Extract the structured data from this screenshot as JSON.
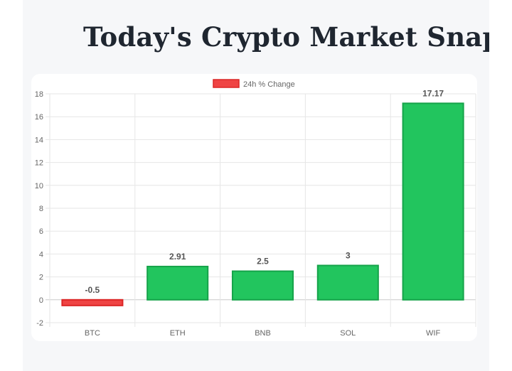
{
  "page": {
    "title": "Today's Crypto Market Snapshot"
  },
  "colors": {
    "positive": "#22c55e",
    "positive_border": "#16a34a",
    "negative": "#ef4444",
    "negative_border": "#dc2626"
  },
  "chart_data": {
    "type": "bar",
    "title": "",
    "xlabel": "",
    "ylabel": "",
    "categories": [
      "BTC",
      "ETH",
      "BNB",
      "SOL",
      "WIF"
    ],
    "series": [
      {
        "name": "24h % Change",
        "values": [
          -0.5,
          2.91,
          2.5,
          3,
          17.17
        ]
      }
    ],
    "ylim": [
      -2,
      18
    ],
    "yticks": [
      -2,
      0,
      2,
      4,
      6,
      8,
      10,
      12,
      14,
      16,
      18
    ],
    "grid": true,
    "legend": "top-center",
    "data_labels": true
  }
}
